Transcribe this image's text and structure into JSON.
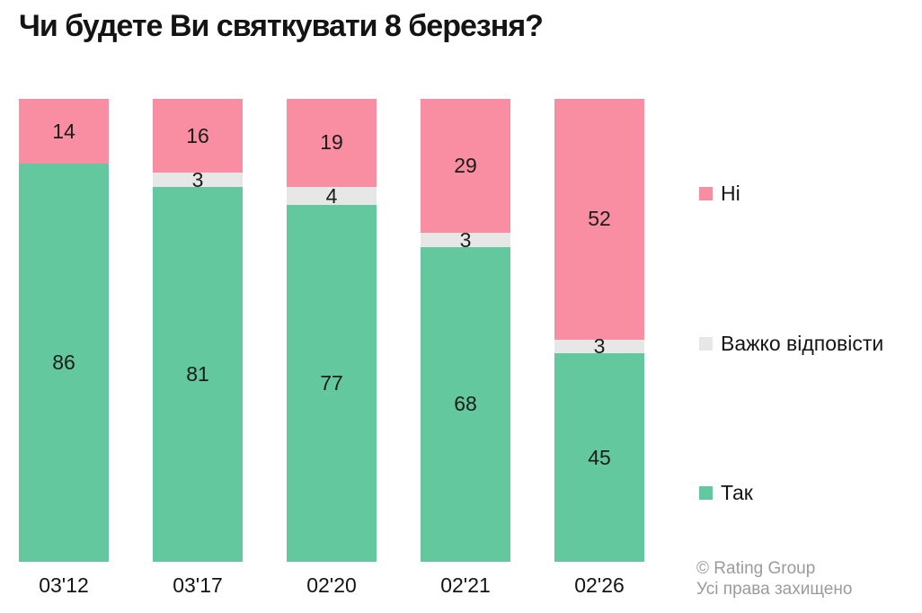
{
  "title": "Чи будете Ви святкувати 8 березня?",
  "chart_data": {
    "type": "bar",
    "stacked": true,
    "orientation": "vertical",
    "title": "Чи будете Ви святкувати 8 березня?",
    "categories": [
      "03'12",
      "03'17",
      "02'20",
      "02'21",
      "02'26"
    ],
    "series": [
      {
        "key": "yes",
        "name": "Так",
        "color": "#63c89d",
        "values": [
          86,
          81,
          77,
          68,
          45
        ]
      },
      {
        "key": "hard-to-answer",
        "name": "Важко відповісти",
        "color": "#e7e7e7",
        "values": [
          0,
          3,
          4,
          3,
          3
        ]
      },
      {
        "key": "no",
        "name": "Ні",
        "color": "#f98da1",
        "values": [
          14,
          16,
          19,
          29,
          52
        ]
      }
    ],
    "ylim": [
      0,
      100
    ],
    "grid": false,
    "value_labels": true,
    "legend_position": "right"
  },
  "legend": {
    "items": [
      {
        "key": "no",
        "label": "Ні",
        "color": "#f98da1"
      },
      {
        "key": "hard-to-answer",
        "label": "Важко відповісти",
        "color": "#e7e7e7"
      },
      {
        "key": "yes",
        "label": "Так",
        "color": "#63c89d"
      }
    ]
  },
  "attribution": {
    "line1": "© Rating Group",
    "line2": "Усі права захищено"
  }
}
